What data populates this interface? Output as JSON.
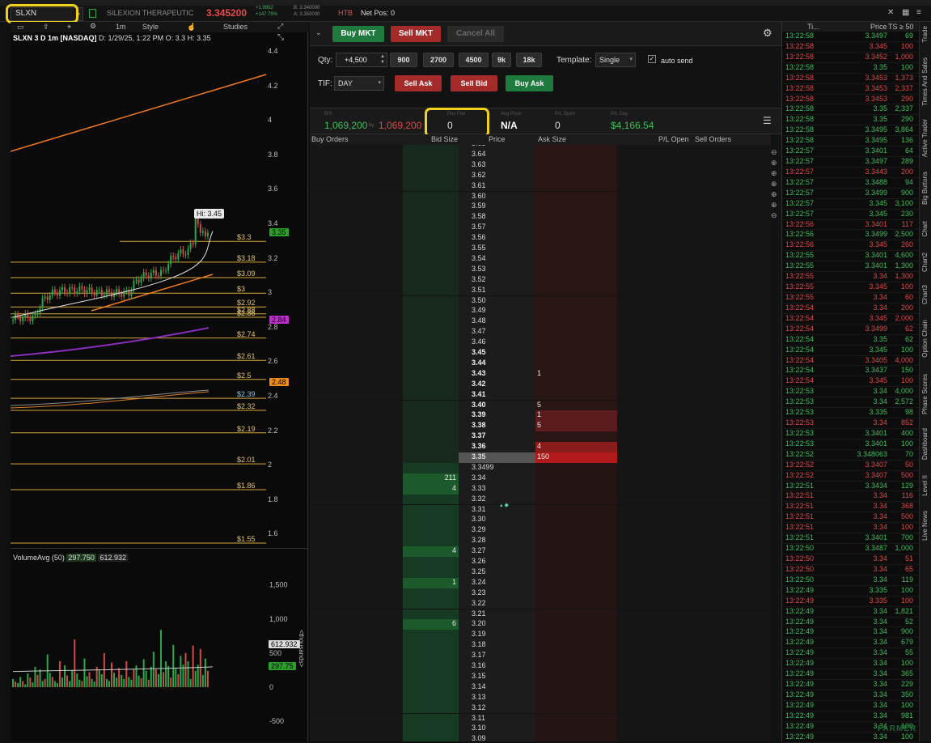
{
  "header": {
    "symbol": "SLXN",
    "company": "SILEXION THERAPEUTIC",
    "last": "3.345200",
    "change": "+1.9952",
    "pct": "+147.79%",
    "bid": "B: 3.340000",
    "ask": "A: 3.350000",
    "htb": "HTB",
    "net_pos": "Net Pos: 0"
  },
  "chart": {
    "title": "SLXN 3 D 1m [NASDAQ]",
    "date": "D: 1/29/25, 1:22 PM",
    "open": "O: 3.3",
    "high": "H: 3.35",
    "toolbar": {
      "interval": "1m",
      "style": "Style",
      "studies": "Studies"
    },
    "hi_label": "Hi: 3.45",
    "y_ticks": [
      "4.4",
      "4.2",
      "4",
      "3.8",
      "3.6",
      "3.4",
      "3.2",
      "3",
      "2.8",
      "2.6",
      "2.4",
      "2.2",
      "2",
      "1.8",
      "1.6"
    ],
    "levels": [
      {
        "label": "$3.3",
        "price": 3.3
      },
      {
        "label": "$3.18",
        "price": 3.18
      },
      {
        "label": "$3.09",
        "price": 3.09
      },
      {
        "label": "$3",
        "price": 3.0
      },
      {
        "label": "$2.92",
        "price": 2.92
      },
      {
        "label": "$2.88",
        "price": 2.88
      },
      {
        "label": "$2.86",
        "price": 2.86
      },
      {
        "label": "$2.74",
        "price": 2.74
      },
      {
        "label": "$2.61",
        "price": 2.61
      },
      {
        "label": "$2.5",
        "price": 2.5
      },
      {
        "label": "$2.39",
        "price": 2.39
      },
      {
        "label": "$2.32",
        "price": 2.32
      },
      {
        "label": "$2.19",
        "price": 2.19
      },
      {
        "label": "$2.01",
        "price": 2.01
      },
      {
        "label": "$1.86",
        "price": 1.86
      },
      {
        "label": "$1.55",
        "price": 1.55
      }
    ],
    "tags": [
      {
        "text": "3.35",
        "price": 3.35,
        "color": "#2ca02c"
      },
      {
        "text": "2.84",
        "price": 2.84,
        "color": "#c02ccf"
      },
      {
        "text": "2.48",
        "price": 2.48,
        "color": "#f08c1a"
      }
    ],
    "volume": {
      "title": "VolumeAvg (50)",
      "avg": "297.750",
      "vol": "612.932",
      "ticks": [
        "1,500",
        "1,000",
        "500",
        "0",
        "-500"
      ],
      "tag_vol": "612.932",
      "tag_avg": "297.75",
      "unit": "<thousands>"
    },
    "colors": {
      "up": "#2aa84a",
      "down": "#d04a4a",
      "trend": "#f07a22",
      "sma": "#8a2ec0"
    }
  },
  "order_entry": {
    "buy_mkt": "Buy MKT",
    "sell_mkt": "Sell MKT",
    "cancel_all": "Cancel All",
    "qty_label": "Qty:",
    "qty": "+4,500",
    "qty_presets": [
      "900",
      "2700",
      "4500",
      "9k",
      "18k"
    ],
    "template_label": "Template:",
    "template": "Single",
    "auto_send": "auto send",
    "tif_label": "TIF:",
    "tif": "DAY",
    "sell_ask": "Sell Ask",
    "sell_bid": "Sell Bid",
    "buy_ask": "Buy Ask"
  },
  "position": {
    "bs_label": "B/S",
    "bought": "1,069,200",
    "by": "by",
    "sold": "1,069,200",
    "pos_label": "Pos Flat",
    "pos": "0",
    "avg_label": "Avg Price",
    "avg": "N/A",
    "plo_label": "P/L Open",
    "plo": "0",
    "pld_label": "P/L Day",
    "pld": "$4,166.54"
  },
  "ladder": {
    "headers": {
      "buy": "Buy Orders",
      "bid": "Bid Size",
      "price": "Price",
      "ask": "Ask Size",
      "plo": "P/L Open",
      "sell": "Sell Orders"
    },
    "rows": [
      {
        "p": "3.65",
        "b": "",
        "a": ""
      },
      {
        "p": "3.64",
        "b": "",
        "a": ""
      },
      {
        "p": "3.63",
        "b": "",
        "a": ""
      },
      {
        "p": "3.62",
        "b": "",
        "a": ""
      },
      {
        "p": "3.61",
        "b": "",
        "a": ""
      },
      {
        "p": "3.60",
        "b": "",
        "a": ""
      },
      {
        "p": "3.59",
        "b": "",
        "a": ""
      },
      {
        "p": "3.58",
        "b": "",
        "a": ""
      },
      {
        "p": "3.57",
        "b": "",
        "a": ""
      },
      {
        "p": "3.56",
        "b": "",
        "a": ""
      },
      {
        "p": "3.55",
        "b": "",
        "a": ""
      },
      {
        "p": "3.54",
        "b": "",
        "a": ""
      },
      {
        "p": "3.53",
        "b": "",
        "a": ""
      },
      {
        "p": "3.52",
        "b": "",
        "a": ""
      },
      {
        "p": "3.51",
        "b": "",
        "a": ""
      },
      {
        "p": "3.50",
        "b": "",
        "a": ""
      },
      {
        "p": "3.49",
        "b": "",
        "a": ""
      },
      {
        "p": "3.48",
        "b": "",
        "a": ""
      },
      {
        "p": "3.47",
        "b": "",
        "a": ""
      },
      {
        "p": "3.46",
        "b": "",
        "a": ""
      },
      {
        "p": "3.45",
        "b": "",
        "a": ""
      },
      {
        "p": "3.44",
        "b": "",
        "a": ""
      },
      {
        "p": "3.43",
        "b": "",
        "a": "1"
      },
      {
        "p": "3.42",
        "b": "",
        "a": ""
      },
      {
        "p": "3.41",
        "b": "",
        "a": ""
      },
      {
        "p": "3.40",
        "b": "",
        "a": "5"
      },
      {
        "p": "3.39",
        "b": "",
        "a": "1"
      },
      {
        "p": "3.38",
        "b": "",
        "a": "5"
      },
      {
        "p": "3.37",
        "b": "",
        "a": ""
      },
      {
        "p": "3.36",
        "b": "",
        "a": "4"
      },
      {
        "p": "3.35",
        "b": "",
        "a": "150"
      },
      {
        "p": "3.3499",
        "b": "",
        "a": ""
      },
      {
        "p": "3.34",
        "b": "211",
        "a": ""
      },
      {
        "p": "3.33",
        "b": "4",
        "a": ""
      },
      {
        "p": "3.32",
        "b": "",
        "a": ""
      },
      {
        "p": "3.31",
        "b": "",
        "a": ""
      },
      {
        "p": "3.30",
        "b": "",
        "a": ""
      },
      {
        "p": "3.29",
        "b": "",
        "a": ""
      },
      {
        "p": "3.28",
        "b": "",
        "a": ""
      },
      {
        "p": "3.27",
        "b": "4",
        "a": ""
      },
      {
        "p": "3.26",
        "b": "",
        "a": ""
      },
      {
        "p": "3.25",
        "b": "",
        "a": ""
      },
      {
        "p": "3.24",
        "b": "1",
        "a": ""
      },
      {
        "p": "3.23",
        "b": "",
        "a": ""
      },
      {
        "p": "3.22",
        "b": "",
        "a": ""
      },
      {
        "p": "3.21",
        "b": "",
        "a": ""
      },
      {
        "p": "3.20",
        "b": "6",
        "a": ""
      },
      {
        "p": "3.19",
        "b": "",
        "a": ""
      },
      {
        "p": "3.18",
        "b": "",
        "a": ""
      },
      {
        "p": "3.17",
        "b": "",
        "a": ""
      },
      {
        "p": "3.16",
        "b": "",
        "a": ""
      },
      {
        "p": "3.15",
        "b": "",
        "a": ""
      },
      {
        "p": "3.14",
        "b": "",
        "a": ""
      },
      {
        "p": "3.13",
        "b": "",
        "a": ""
      },
      {
        "p": "3.12",
        "b": "",
        "a": ""
      },
      {
        "p": "3.11",
        "b": "",
        "a": ""
      },
      {
        "p": "3.10",
        "b": "",
        "a": ""
      },
      {
        "p": "3.09",
        "b": "",
        "a": ""
      }
    ]
  },
  "time_sales": {
    "headers": {
      "time": "Ti...",
      "price": "Price",
      "size": "TS ≥ 50"
    },
    "rows": [
      [
        "13:22:58",
        "3.3497",
        "69",
        "u"
      ],
      [
        "13:22:58",
        "3.345",
        "100",
        "d"
      ],
      [
        "13:22:58",
        "3.3452",
        "1,000",
        "d"
      ],
      [
        "13:22:58",
        "3.35",
        "100",
        "u"
      ],
      [
        "13:22:58",
        "3.3453",
        "1,373",
        "d"
      ],
      [
        "13:22:58",
        "3.3453",
        "2,337",
        "d"
      ],
      [
        "13:22:58",
        "3.3453",
        "290",
        "d"
      ],
      [
        "13:22:58",
        "3.35",
        "2,337",
        "u"
      ],
      [
        "13:22:58",
        "3.35",
        "290",
        "u"
      ],
      [
        "13:22:58",
        "3.3495",
        "3,864",
        "u"
      ],
      [
        "13:22:58",
        "3.3495",
        "136",
        "u"
      ],
      [
        "13:22:57",
        "3.3401",
        "64",
        "u"
      ],
      [
        "13:22:57",
        "3.3497",
        "289",
        "u"
      ],
      [
        "13:22:57",
        "3.3443",
        "200",
        "d"
      ],
      [
        "13:22:57",
        "3.3488",
        "94",
        "u"
      ],
      [
        "13:22:57",
        "3.3499",
        "900",
        "u"
      ],
      [
        "13:22:57",
        "3.345",
        "3,100",
        "u"
      ],
      [
        "13:22:57",
        "3.345",
        "230",
        "u"
      ],
      [
        "13:22:56",
        "3.3401",
        "117",
        "d"
      ],
      [
        "13:22:56",
        "3.3499",
        "2,500",
        "u"
      ],
      [
        "13:22:56",
        "3.345",
        "260",
        "d"
      ],
      [
        "13:22:55",
        "3.3401",
        "4,600",
        "u"
      ],
      [
        "13:22:55",
        "3.3401",
        "1,300",
        "u"
      ],
      [
        "13:22:55",
        "3.34",
        "1,300",
        "d"
      ],
      [
        "13:22:55",
        "3.345",
        "100",
        "d"
      ],
      [
        "13:22:55",
        "3.34",
        "60",
        "d"
      ],
      [
        "13:22:54",
        "3.34",
        "200",
        "d"
      ],
      [
        "13:22:54",
        "3.345",
        "2,000",
        "d"
      ],
      [
        "13:22:54",
        "3.3499",
        "62",
        "d"
      ],
      [
        "13:22:54",
        "3.35",
        "62",
        "u"
      ],
      [
        "13:22:54",
        "3.345",
        "100",
        "u"
      ],
      [
        "13:22:54",
        "3.3405",
        "4,000",
        "d"
      ],
      [
        "13:22:54",
        "3.3437",
        "150",
        "u"
      ],
      [
        "13:22:54",
        "3.345",
        "100",
        "d"
      ],
      [
        "13:22:53",
        "3.34",
        "4,000",
        "u"
      ],
      [
        "13:22:53",
        "3.34",
        "2,572",
        "u"
      ],
      [
        "13:22:53",
        "3.335",
        "98",
        "u"
      ],
      [
        "13:22:53",
        "3.34",
        "852",
        "d"
      ],
      [
        "13:22:53",
        "3.3401",
        "400",
        "u"
      ],
      [
        "13:22:53",
        "3.3401",
        "100",
        "u"
      ],
      [
        "13:22:52",
        "3.348063",
        "70",
        "u"
      ],
      [
        "13:22:52",
        "3.3407",
        "50",
        "d"
      ],
      [
        "13:22:52",
        "3.3407",
        "500",
        "d"
      ],
      [
        "13:22:51",
        "3.3434",
        "129",
        "u"
      ],
      [
        "13:22:51",
        "3.34",
        "116",
        "d"
      ],
      [
        "13:22:51",
        "3.34",
        "368",
        "d"
      ],
      [
        "13:22:51",
        "3.34",
        "500",
        "d"
      ],
      [
        "13:22:51",
        "3.34",
        "100",
        "d"
      ],
      [
        "13:22:51",
        "3.3401",
        "700",
        "u"
      ],
      [
        "13:22:50",
        "3.3487",
        "1,000",
        "u"
      ],
      [
        "13:22:50",
        "3.34",
        "51",
        "d"
      ],
      [
        "13:22:50",
        "3.34",
        "65",
        "d"
      ],
      [
        "13:22:50",
        "3.34",
        "119",
        "u"
      ],
      [
        "13:22:49",
        "3.335",
        "100",
        "u"
      ],
      [
        "13:22:49",
        "3.335",
        "100",
        "d"
      ],
      [
        "13:22:49",
        "3.34",
        "1,821",
        "u"
      ],
      [
        "13:22:49",
        "3.34",
        "52",
        "u"
      ],
      [
        "13:22:49",
        "3.34",
        "900",
        "u"
      ],
      [
        "13:22:49",
        "3.34",
        "679",
        "u"
      ],
      [
        "13:22:49",
        "3.34",
        "55",
        "u"
      ],
      [
        "13:22:49",
        "3.34",
        "100",
        "u"
      ],
      [
        "13:22:49",
        "3.34",
        "365",
        "u"
      ],
      [
        "13:22:49",
        "3.34",
        "229",
        "u"
      ],
      [
        "13:22:49",
        "3.34",
        "350",
        "u"
      ],
      [
        "13:22:49",
        "3.34",
        "100",
        "u"
      ],
      [
        "13:22:49",
        "3.34",
        "981",
        "u"
      ],
      [
        "13:22:49",
        "3.34",
        "100",
        "u"
      ],
      [
        "13:22:49",
        "3.34",
        "100",
        "u"
      ]
    ]
  },
  "side_tabs": [
    "Trade",
    "Times And Sales",
    "Active Trader",
    "Big Buttons",
    "Chart",
    "Chart2",
    "Chart3",
    "Option Chain",
    "Phase Scores",
    "Dashboard",
    "Level II",
    "Live News"
  ],
  "watermark": "FARMER"
}
